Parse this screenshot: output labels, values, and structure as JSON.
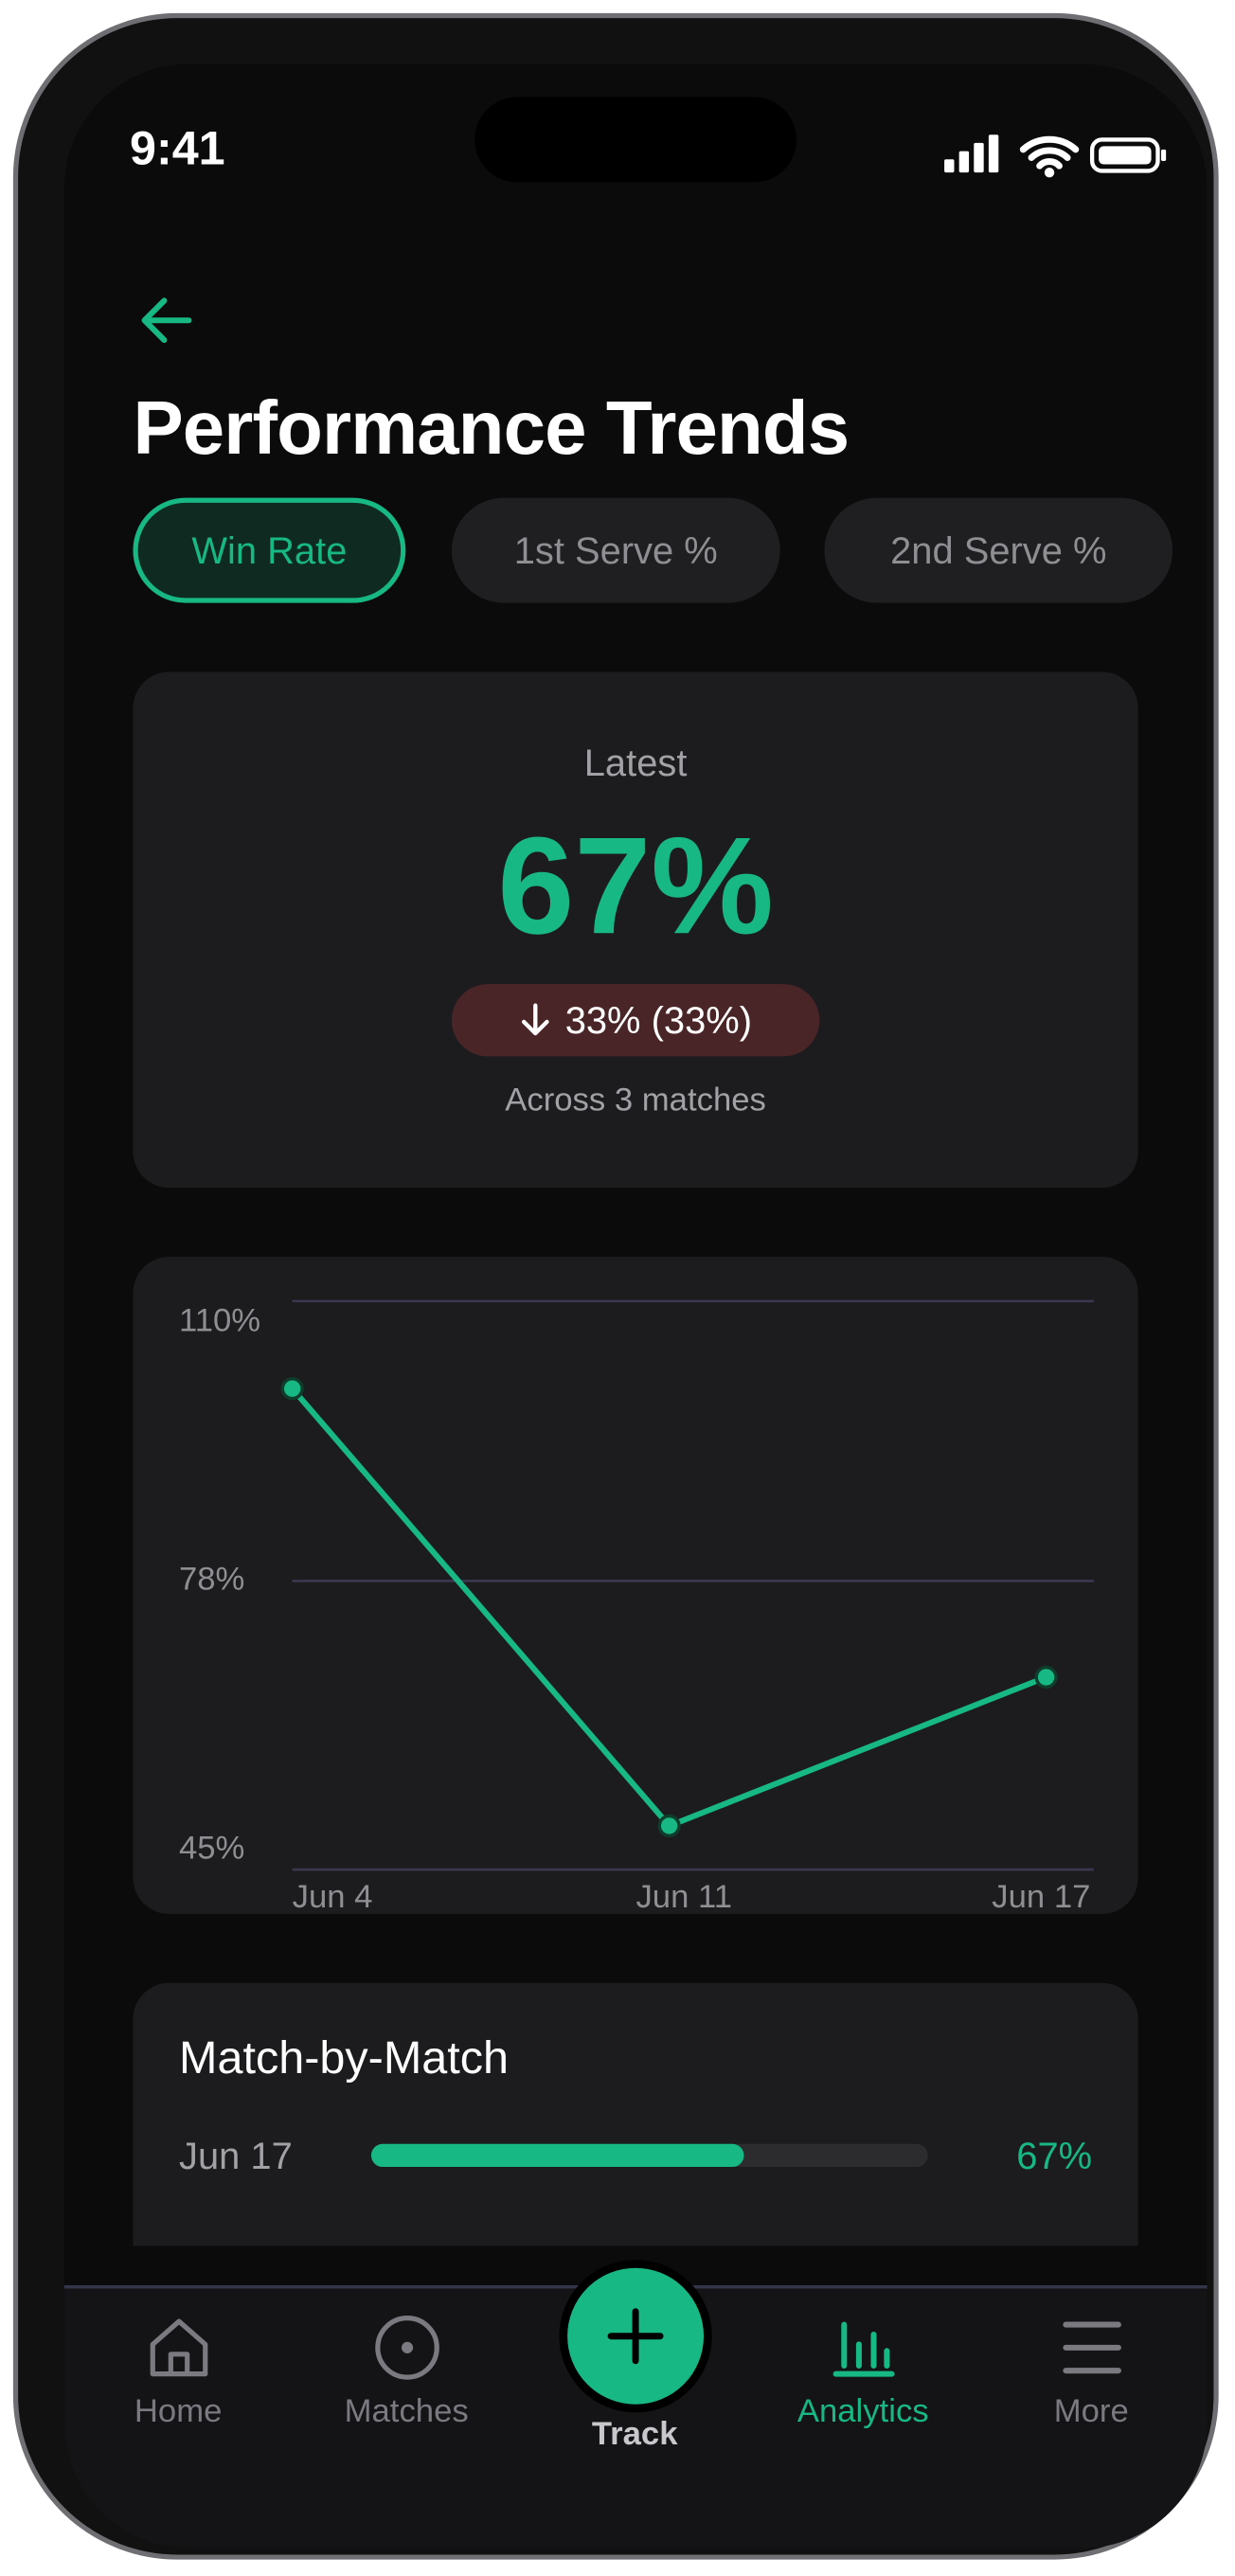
{
  "status_bar": {
    "time": "9:41"
  },
  "header": {
    "title": "Performance Trends"
  },
  "tabs": [
    {
      "label": "Win Rate",
      "active": true
    },
    {
      "label": "1st Serve %",
      "active": false
    },
    {
      "label": "2nd Serve %",
      "active": false
    }
  ],
  "summary": {
    "caption": "Latest",
    "value": "67%",
    "change": "33% (33%)",
    "note": "Across 3 matches"
  },
  "chart_data": {
    "type": "line",
    "categories": [
      "Jun 4",
      "Jun 11",
      "Jun 17"
    ],
    "values": [
      100,
      50,
      67
    ],
    "color": "#17b884",
    "ylim": [
      45,
      110
    ],
    "yticks": [
      {
        "value": 45,
        "label": "45%"
      },
      {
        "value": 78,
        "label": "78%"
      },
      {
        "value": 110,
        "label": "110%"
      }
    ],
    "grid": true
  },
  "match_by_match": {
    "title": "Match-by-Match",
    "rows": [
      {
        "date": "Jun 17",
        "value": 67,
        "value_label": "67%"
      }
    ]
  },
  "nav": [
    {
      "label": "Home",
      "active": false
    },
    {
      "label": "Matches",
      "active": false
    },
    {
      "label": "Track",
      "active": false
    },
    {
      "label": "Analytics",
      "active": true
    },
    {
      "label": "More",
      "active": false
    }
  ]
}
